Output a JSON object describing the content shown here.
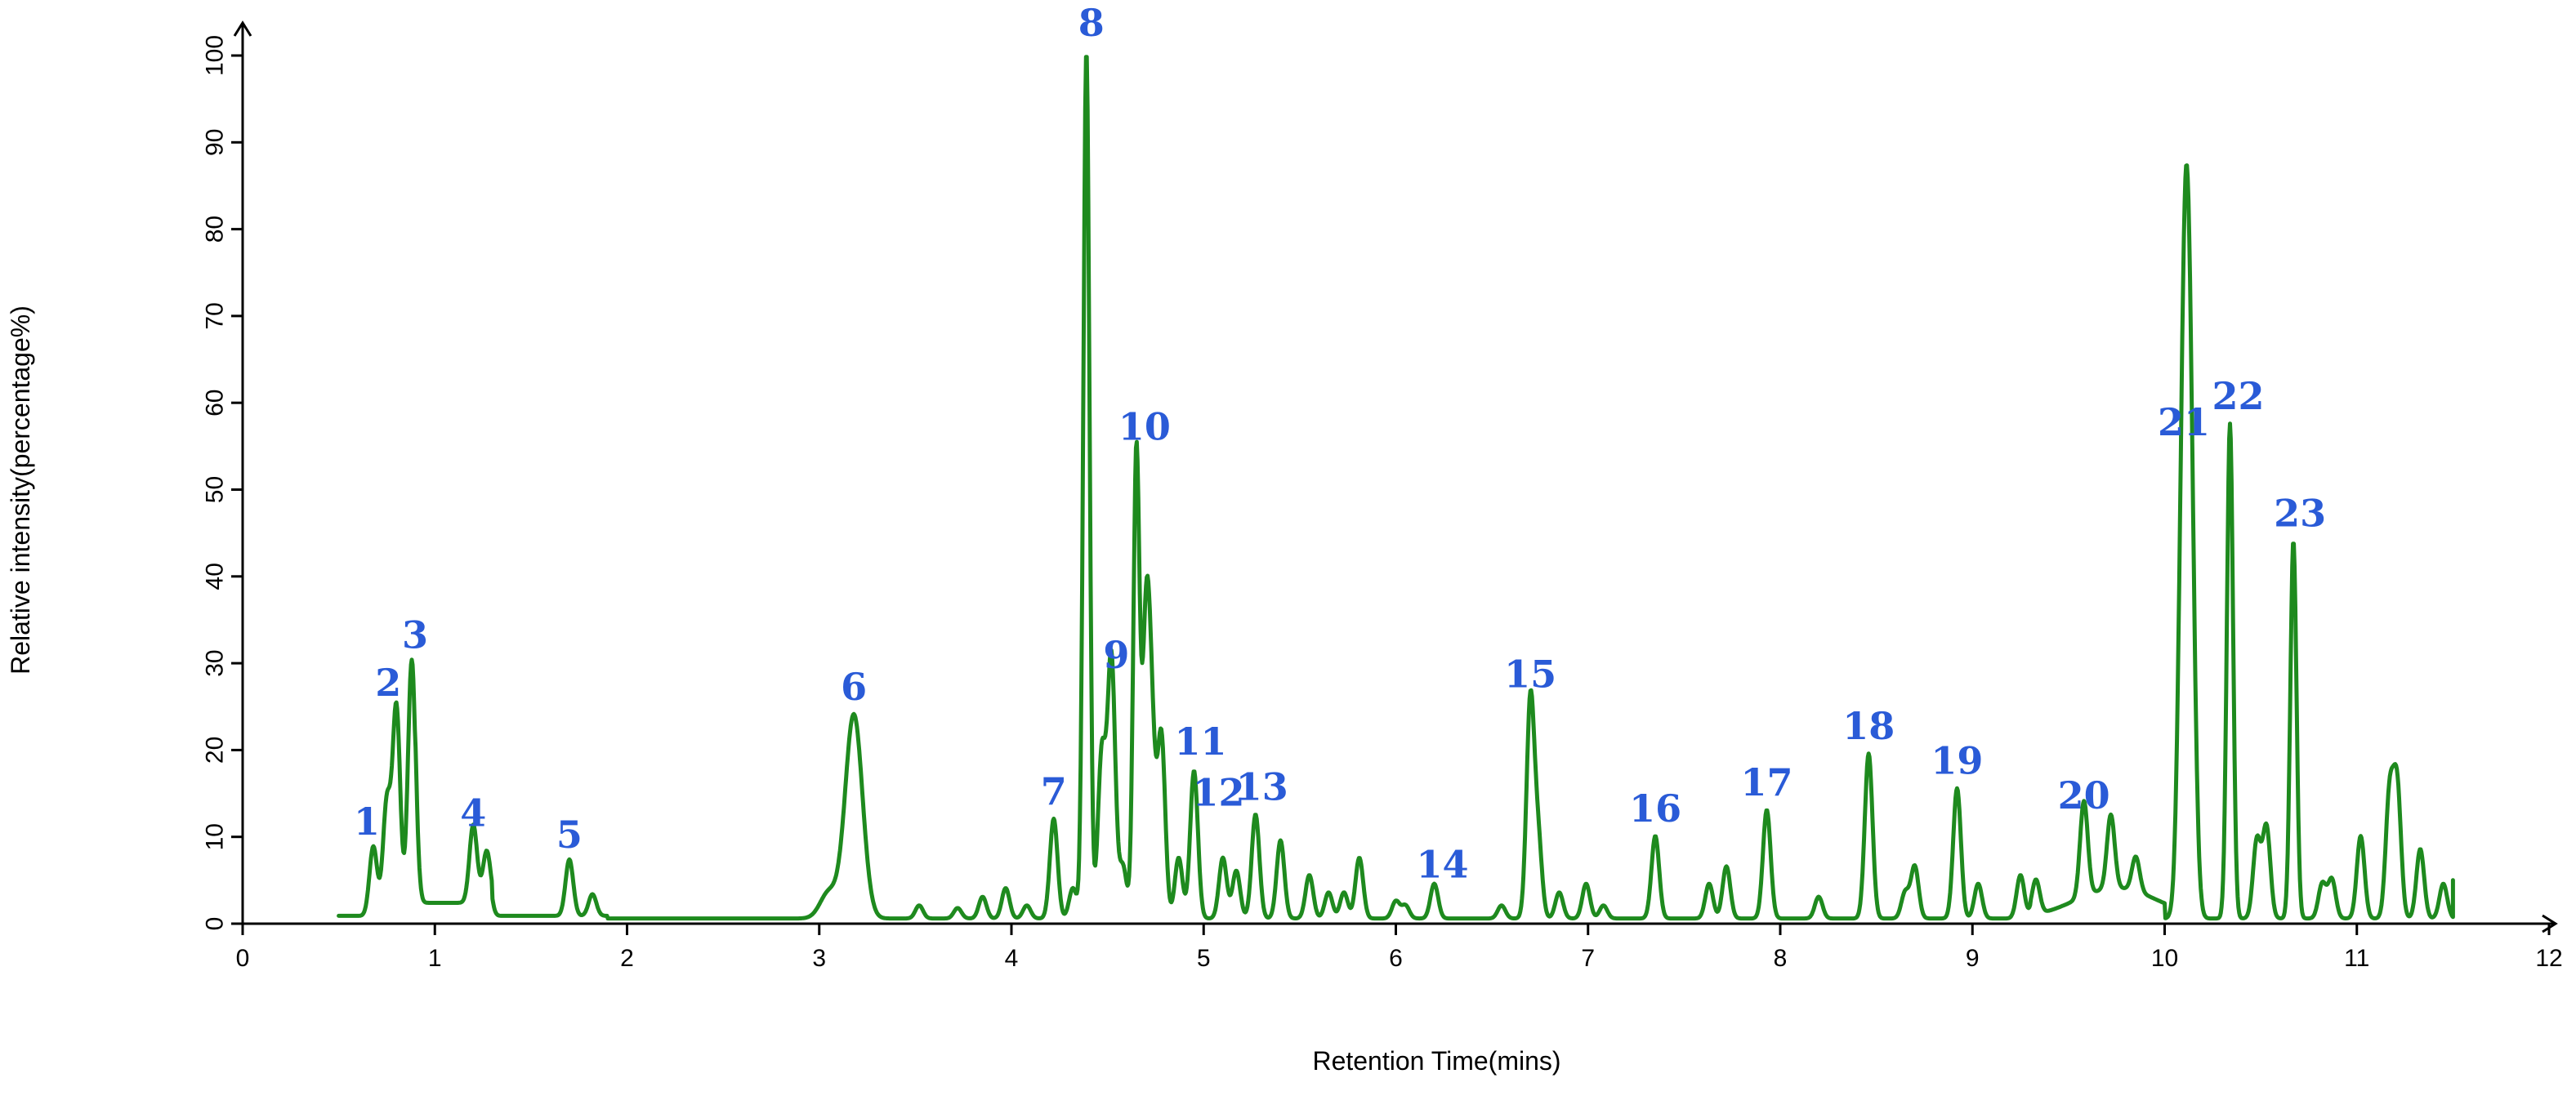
{
  "chart_data": {
    "type": "line",
    "title": "",
    "xlabel": "Retention Time(mins)",
    "ylabel": "Relative intensity(percentage%)",
    "xlim": [
      0,
      12
    ],
    "ylim": [
      0,
      100
    ],
    "xticks": [
      "0",
      "1",
      "2",
      "3",
      "4",
      "5",
      "6",
      "7",
      "8",
      "9",
      "10",
      "11",
      "12"
    ],
    "yticks": [
      "0",
      "10",
      "20",
      "30",
      "40",
      "50",
      "60",
      "70",
      "80",
      "90",
      "100"
    ],
    "grid": false,
    "color": "#1e8a1e",
    "label_color": "#2a5bd7",
    "peaks": [
      {
        "label": "1",
        "rt": 0.68,
        "intensity": 8
      },
      {
        "label": "2",
        "rt": 0.8,
        "intensity": 24
      },
      {
        "label": "3",
        "rt": 0.88,
        "intensity": 29.5
      },
      {
        "label": "4",
        "rt": 1.2,
        "intensity": 9
      },
      {
        "label": "5",
        "rt": 1.7,
        "intensity": 6.5
      },
      {
        "label": "6",
        "rt": 3.18,
        "intensity": 23.5
      },
      {
        "label": "7",
        "rt": 4.22,
        "intensity": 11.5
      },
      {
        "label": "8",
        "rt": 4.39,
        "intensity": 100
      },
      {
        "label": "9",
        "rt": 4.52,
        "intensity": 30
      },
      {
        "label": "10",
        "rt": 4.65,
        "intensity": 53.5
      },
      {
        "label": "11",
        "rt": 4.78,
        "intensity": 21
      },
      {
        "label": "12",
        "rt": 4.95,
        "intensity": 17
      },
      {
        "label": "13",
        "rt": 5.27,
        "intensity": 12
      },
      {
        "label": "14",
        "rt": 6.2,
        "intensity": 4
      },
      {
        "label": "15",
        "rt": 6.7,
        "intensity": 25
      },
      {
        "label": "16",
        "rt": 7.35,
        "intensity": 9.5
      },
      {
        "label": "17",
        "rt": 7.93,
        "intensity": 12.5
      },
      {
        "label": "18",
        "rt": 8.46,
        "intensity": 19
      },
      {
        "label": "19",
        "rt": 8.92,
        "intensity": 15
      },
      {
        "label": "20",
        "rt": 9.58,
        "intensity": 11
      },
      {
        "label": "21",
        "rt": 10.1,
        "intensity": 54
      },
      {
        "label": "22",
        "rt": 10.34,
        "intensity": 57
      },
      {
        "label": "23",
        "rt": 10.67,
        "intensity": 43.5
      }
    ],
    "minor_peaks": [
      [
        0.75,
        13
      ],
      [
        1.27,
        6
      ],
      [
        1.82,
        2.5
      ],
      [
        3.05,
        3
      ],
      [
        3.52,
        1.5
      ],
      [
        3.72,
        1.2
      ],
      [
        3.85,
        2.5
      ],
      [
        3.97,
        3.5
      ],
      [
        4.08,
        1.5
      ],
      [
        4.32,
        3.5
      ],
      [
        4.47,
        19
      ],
      [
        4.58,
        6
      ],
      [
        4.7,
        32
      ],
      [
        4.73,
        18
      ],
      [
        4.87,
        7
      ],
      [
        5.1,
        7
      ],
      [
        5.17,
        5.5
      ],
      [
        5.4,
        9
      ],
      [
        5.55,
        5
      ],
      [
        5.65,
        3
      ],
      [
        5.73,
        3
      ],
      [
        5.81,
        7
      ],
      [
        6.0,
        2
      ],
      [
        6.05,
        1.5
      ],
      [
        6.55,
        1.5
      ],
      [
        6.74,
        9
      ],
      [
        6.85,
        3
      ],
      [
        6.99,
        4
      ],
      [
        7.08,
        1.5
      ],
      [
        7.63,
        4
      ],
      [
        7.72,
        6
      ],
      [
        8.2,
        2.5
      ],
      [
        8.65,
        3
      ],
      [
        8.7,
        6
      ],
      [
        9.03,
        4
      ],
      [
        9.25,
        5
      ],
      [
        9.33,
        4
      ],
      [
        9.72,
        8.5
      ],
      [
        9.85,
        4
      ],
      [
        10.13,
        50
      ],
      [
        10.48,
        9
      ],
      [
        10.53,
        10.5
      ],
      [
        10.82,
        4
      ],
      [
        10.87,
        4.5
      ],
      [
        11.02,
        9.5
      ],
      [
        11.17,
        14
      ],
      [
        11.21,
        15
      ],
      [
        11.33,
        8
      ],
      [
        11.45,
        4
      ]
    ]
  }
}
